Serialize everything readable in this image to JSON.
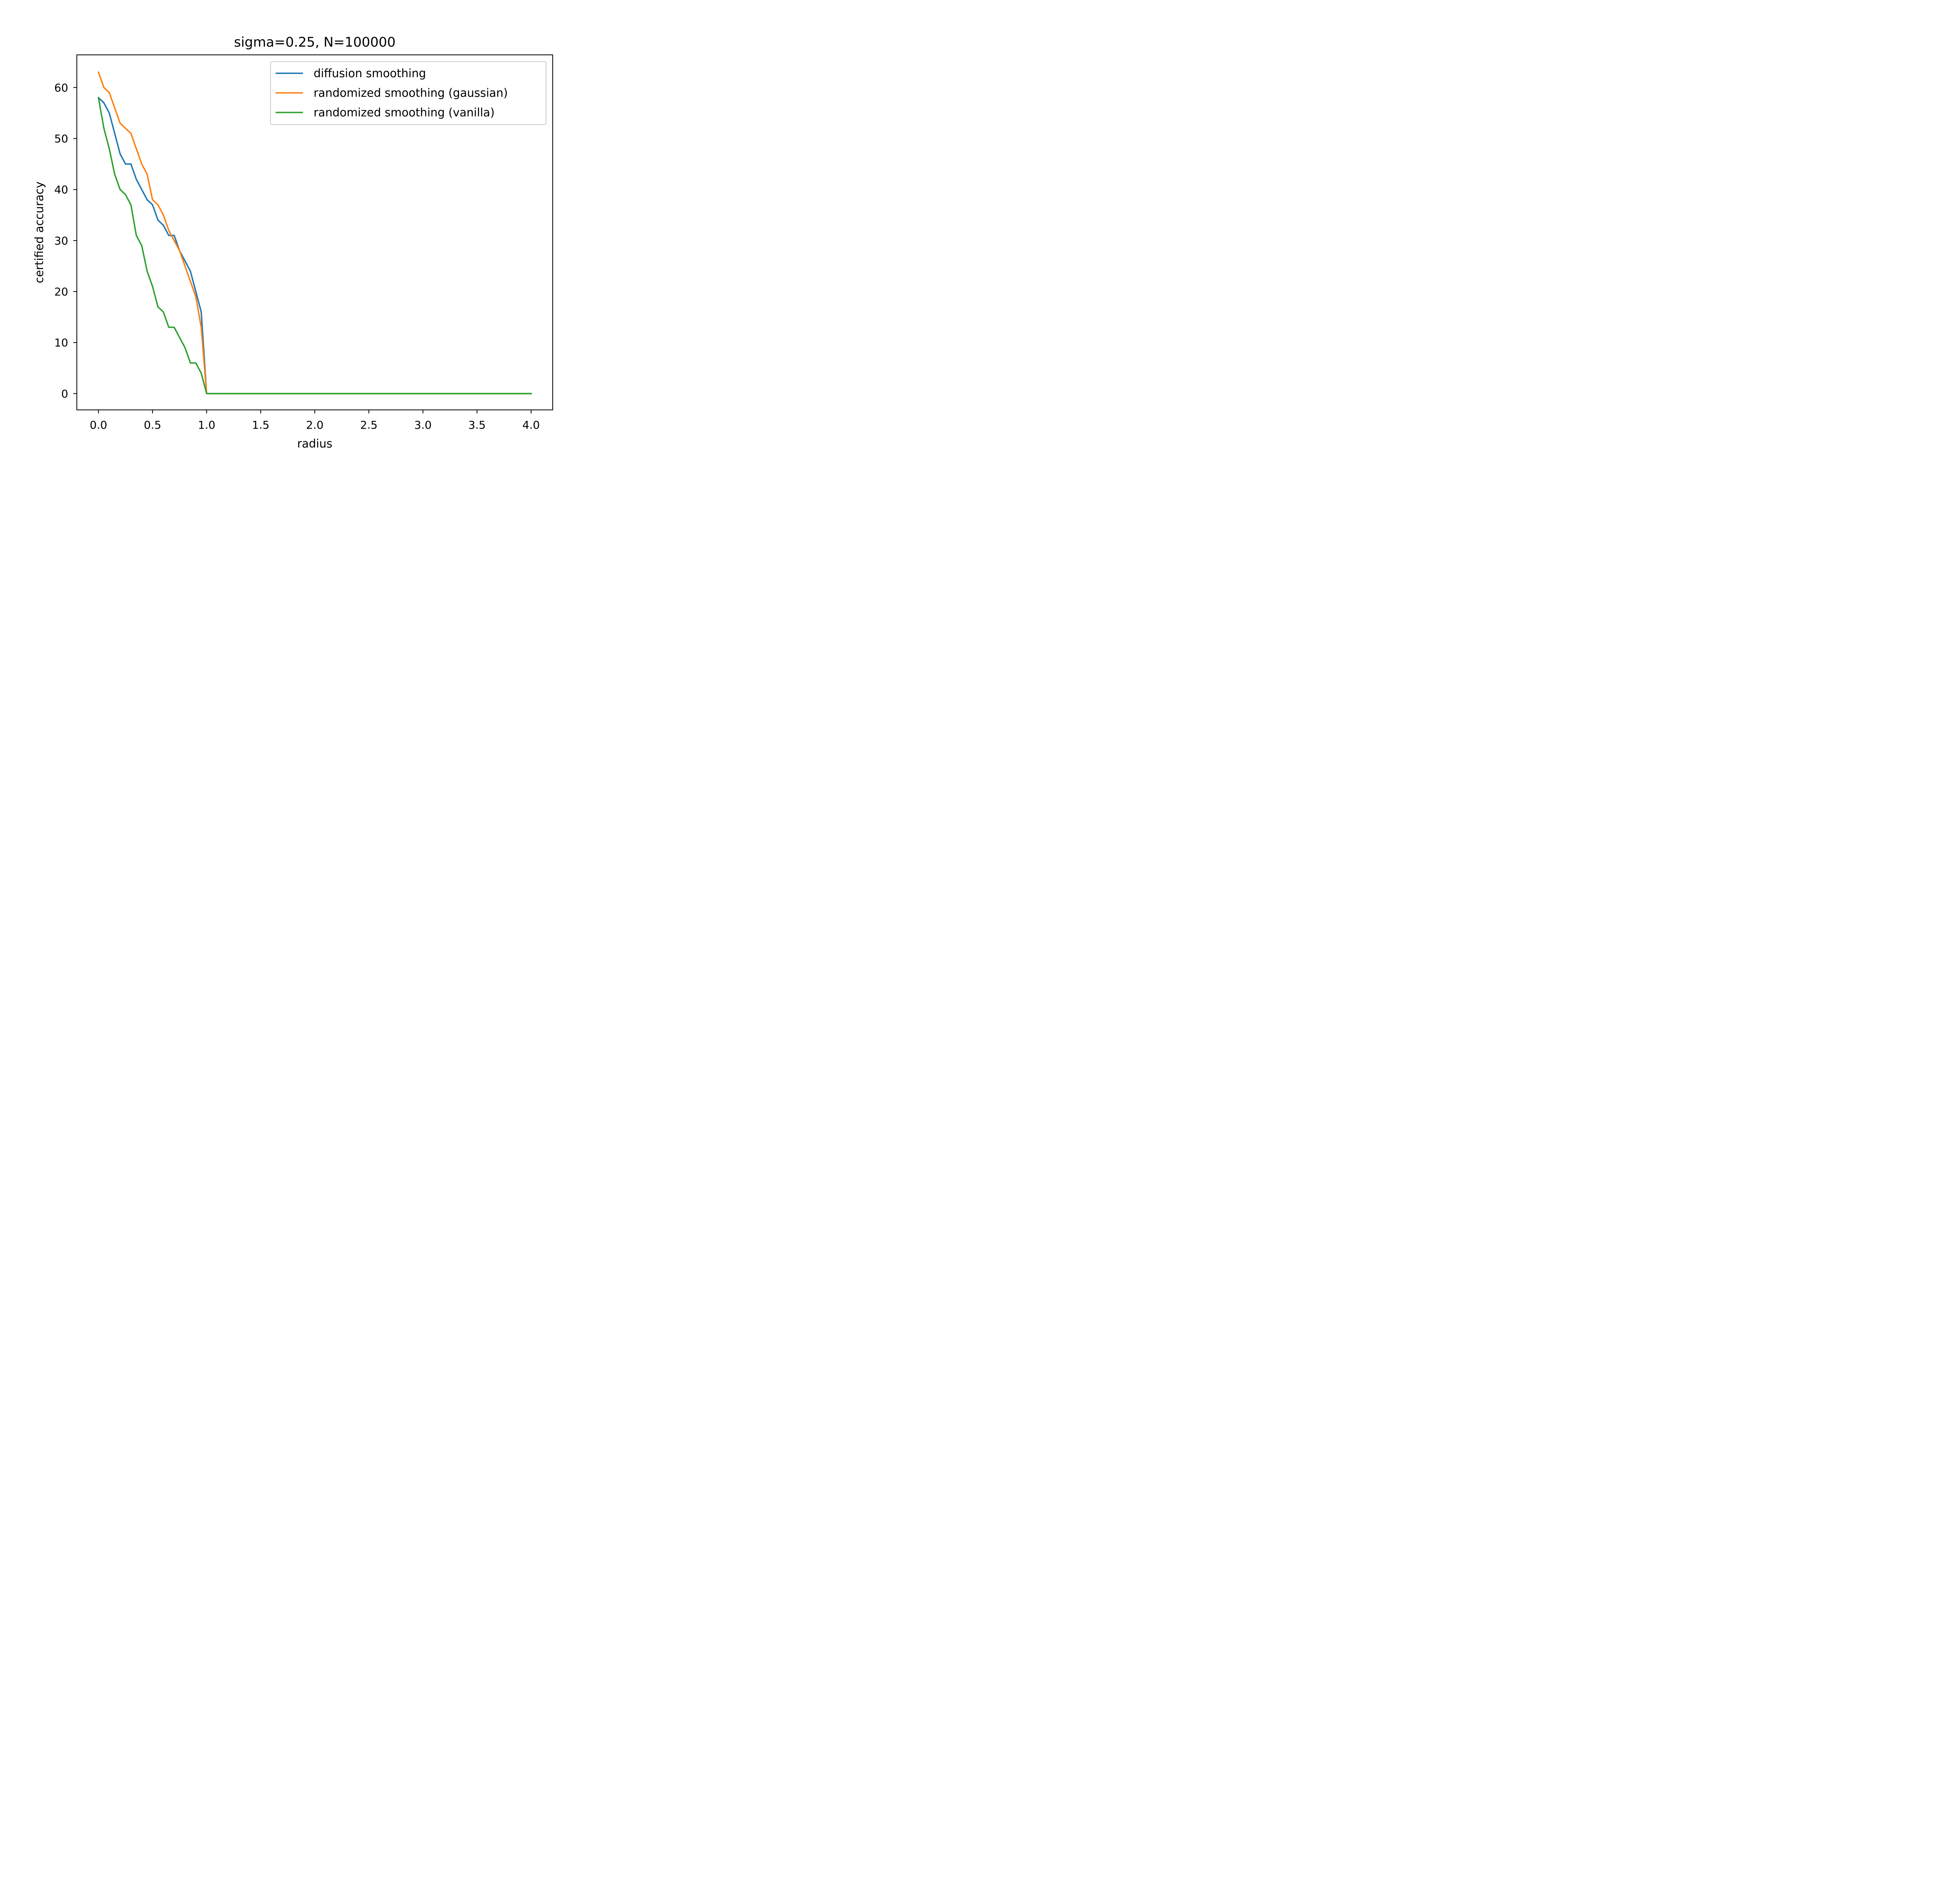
{
  "chart_data": {
    "type": "line",
    "title": "sigma=0.25, N=100000",
    "xlabel": "radius",
    "ylabel": "certified accuracy",
    "xlim": [
      -0.2,
      4.2
    ],
    "ylim": [
      -3.2,
      66.4
    ],
    "xticks": [
      0.0,
      0.5,
      1.0,
      1.5,
      2.0,
      2.5,
      3.0,
      3.5,
      4.0
    ],
    "xtick_labels": [
      "0.0",
      "0.5",
      "1.0",
      "1.5",
      "2.0",
      "2.5",
      "3.0",
      "3.5",
      "4.0"
    ],
    "yticks": [
      0,
      10,
      20,
      30,
      40,
      50,
      60
    ],
    "ytick_labels": [
      "0",
      "10",
      "20",
      "30",
      "40",
      "50",
      "60"
    ],
    "grid": false,
    "legend_position": "upper right",
    "x": [
      0.0,
      0.05,
      0.1,
      0.15,
      0.2,
      0.25,
      0.3,
      0.35,
      0.4,
      0.45,
      0.5,
      0.55,
      0.6,
      0.65,
      0.7,
      0.75,
      0.8,
      0.85,
      0.9,
      0.95,
      1.0,
      4.0
    ],
    "series": [
      {
        "name": "diffusion smoothing",
        "color": "#1f77b4",
        "values": [
          58,
          57,
          55,
          51,
          47,
          45,
          45,
          42,
          40,
          38,
          37,
          34,
          33,
          31,
          31,
          28,
          26,
          24,
          20,
          16,
          0,
          0
        ]
      },
      {
        "name": "randomized smoothing (gaussian)",
        "color": "#ff7f0e",
        "values": [
          63,
          60,
          59,
          56,
          53,
          52,
          51,
          48,
          45,
          43,
          38,
          37,
          35,
          32,
          30,
          28,
          25,
          22,
          19,
          13,
          0,
          0
        ]
      },
      {
        "name": "randomized smoothing (vanilla)",
        "color": "#2ca02c",
        "values": [
          58,
          52,
          48,
          43,
          40,
          39,
          37,
          31,
          29,
          24,
          21,
          17,
          16,
          13,
          13,
          11,
          9,
          6,
          6,
          4,
          0,
          0
        ]
      }
    ]
  }
}
